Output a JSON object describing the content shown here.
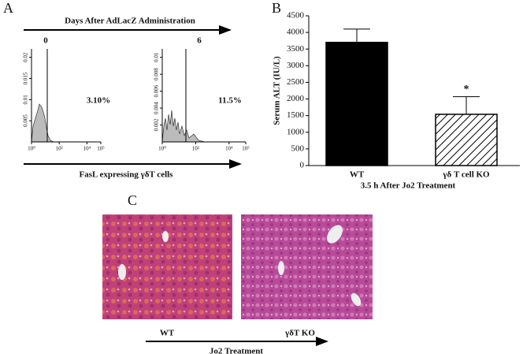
{
  "panel_a": {
    "letter": "A",
    "header": "Days After AdLacZ Administration",
    "footer": "FasL expressing γδT cells",
    "histograms": [
      {
        "day": "0",
        "percent": "3.10%",
        "xscale": "log",
        "xlim": [
          1,
          100000
        ],
        "xticks": [
          {
            "value": 1,
            "label": "10⁰"
          },
          {
            "value": 100,
            "label": "10²"
          },
          {
            "value": 10000,
            "label": "10⁴"
          },
          {
            "value": 100000,
            "label": "10⁵"
          }
        ],
        "ylim": [
          0,
          0.022
        ],
        "yticks": [
          0.005,
          0.01,
          0.015,
          0.02
        ]
      },
      {
        "day": "6",
        "percent": "11.5%",
        "xscale": "log",
        "xlim": [
          1,
          100000
        ],
        "xticks": [
          {
            "value": 1,
            "label": "10⁰"
          },
          {
            "value": 100,
            "label": "10²"
          },
          {
            "value": 10000,
            "label": "10⁴"
          },
          {
            "value": 100000,
            "label": "10⁵"
          }
        ],
        "ylim": [
          0,
          0.011
        ],
        "yticks": [
          0.002,
          0.004,
          0.006,
          0.008,
          0.01
        ]
      }
    ]
  },
  "chart_data": {
    "type": "bar",
    "letter": "B",
    "ylabel": "Serum ALT (IU/L)",
    "xlabel": "3.5 h After Jo2 Treatment",
    "categories": [
      "WT",
      "γδ T cell KO"
    ],
    "values": [
      3700,
      1540
    ],
    "errors": [
      400,
      530
    ],
    "colors": [
      "#000000",
      "#ffffff"
    ],
    "hatch": [
      false,
      true
    ],
    "annotations": [
      null,
      "*"
    ],
    "ylim": [
      0,
      4500
    ],
    "yticks": [
      0,
      500,
      1000,
      1500,
      2000,
      2500,
      3000,
      3500,
      4000,
      4500
    ]
  },
  "panel_c": {
    "letter": "C",
    "labels": [
      "WT",
      "γδT KO"
    ],
    "footer": "Jo2 Treatment"
  }
}
